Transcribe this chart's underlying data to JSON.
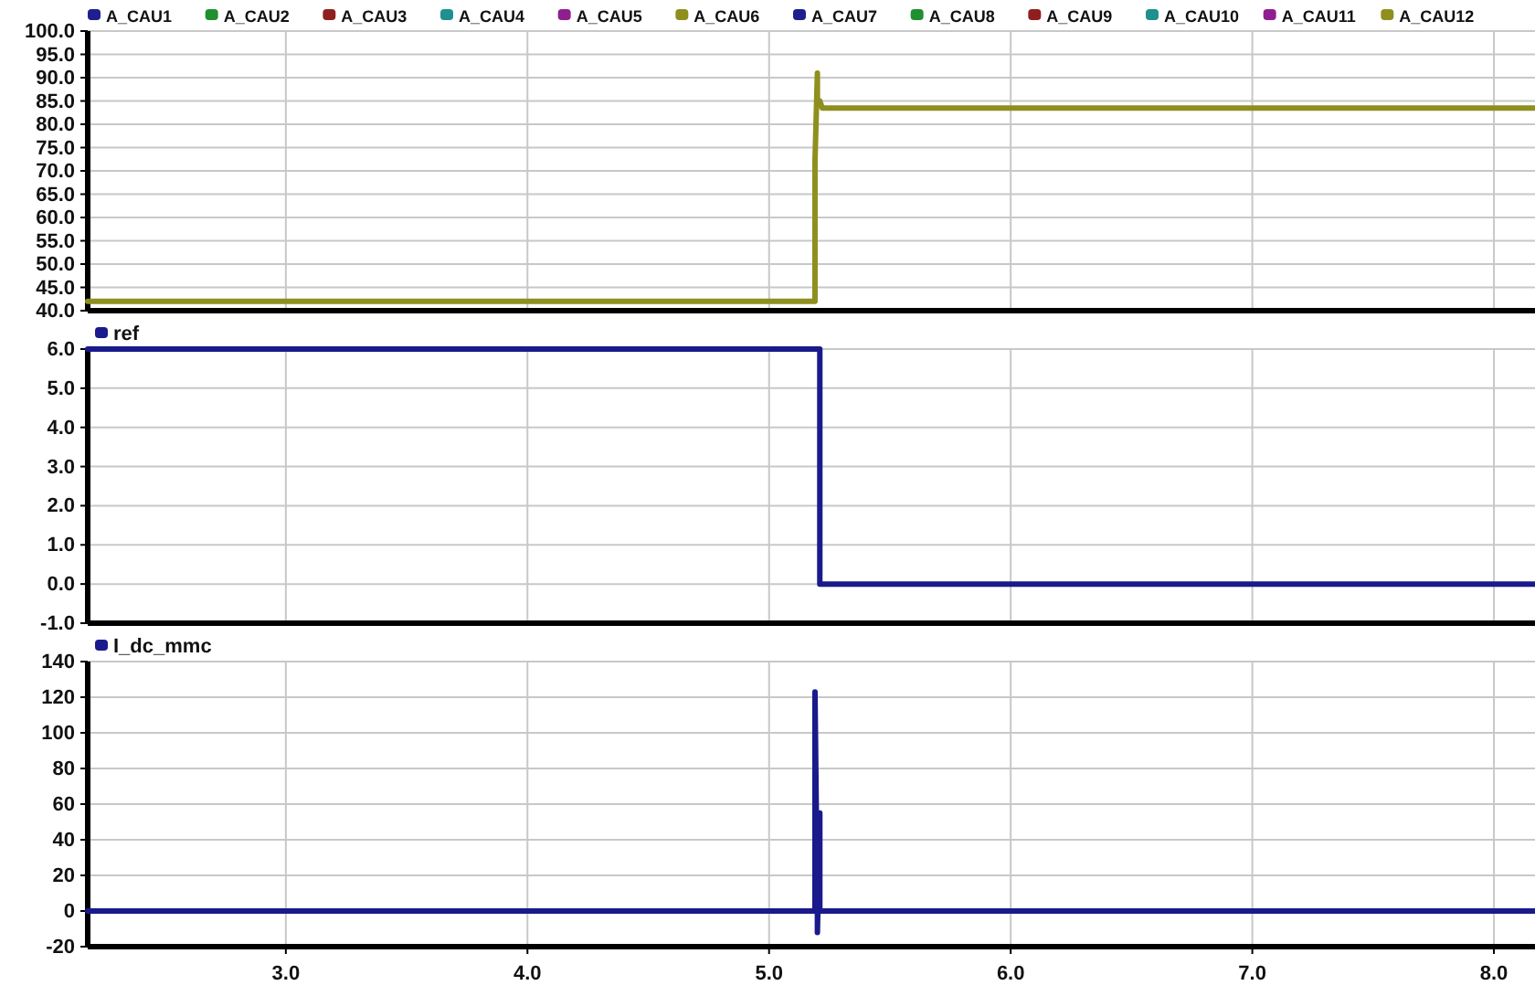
{
  "chart_data": [
    {
      "type": "line",
      "xlim": [
        2.18,
        8.17
      ],
      "xticks": [
        3,
        4,
        5,
        6,
        7,
        8
      ],
      "ylim": [
        40,
        100
      ],
      "yticks": [
        {
          "value": 40,
          "label": "40.0"
        },
        {
          "value": 45,
          "label": "45.0"
        },
        {
          "value": 50,
          "label": "50.0"
        },
        {
          "value": 55,
          "label": "55.0"
        },
        {
          "value": 60,
          "label": "60.0"
        },
        {
          "value": 65,
          "label": "65.0"
        },
        {
          "value": 70,
          "label": "70.0"
        },
        {
          "value": 75,
          "label": "75.0"
        },
        {
          "value": 80,
          "label": "80.0"
        },
        {
          "value": 85,
          "label": "85.0"
        },
        {
          "value": 90,
          "label": "90.0"
        },
        {
          "value": 95,
          "label": "95.0"
        },
        {
          "value": 100,
          "label": "100.0"
        }
      ],
      "tick_labels": "y",
      "grid": true,
      "legend": "top",
      "line_style": "solid",
      "marker": "none",
      "x": [
        2.18,
        5.19,
        5.19,
        5.2,
        5.2,
        5.21,
        5.22,
        8.17
      ],
      "series": [
        {
          "name": "A_CAU1",
          "color": "#1f1f8f",
          "values": [
            null,
            null,
            null,
            null,
            null,
            null,
            null,
            null
          ]
        },
        {
          "name": "A_CAU2",
          "color": "#1f8f2f",
          "values": [
            null,
            null,
            null,
            null,
            null,
            null,
            null,
            null
          ]
        },
        {
          "name": "A_CAU3",
          "color": "#8f1f1f",
          "values": [
            null,
            null,
            null,
            null,
            null,
            null,
            null,
            null
          ]
        },
        {
          "name": "A_CAU4",
          "color": "#1f8f8f",
          "values": [
            null,
            null,
            null,
            null,
            null,
            null,
            null,
            null
          ]
        },
        {
          "name": "A_CAU5",
          "color": "#8f1f8f",
          "values": [
            null,
            null,
            null,
            null,
            null,
            null,
            null,
            null
          ]
        },
        {
          "name": "A_CAU6",
          "color": "#8f8f1f",
          "values": [
            null,
            null,
            null,
            null,
            null,
            null,
            null,
            null
          ]
        },
        {
          "name": "A_CAU7",
          "color": "#1f1f8f",
          "values": [
            null,
            null,
            null,
            null,
            null,
            null,
            null,
            null
          ]
        },
        {
          "name": "A_CAU8",
          "color": "#1f8f2f",
          "values": [
            null,
            null,
            null,
            null,
            null,
            null,
            null,
            null
          ]
        },
        {
          "name": "A_CAU9",
          "color": "#8f1f1f",
          "values": [
            null,
            null,
            null,
            null,
            null,
            null,
            null,
            null
          ]
        },
        {
          "name": "A_CAU10",
          "color": "#1f8f8f",
          "values": [
            null,
            null,
            null,
            null,
            null,
            null,
            null,
            null
          ]
        },
        {
          "name": "A_CAU11",
          "color": "#8f1f8f",
          "values": [
            null,
            null,
            null,
            null,
            null,
            null,
            null,
            null
          ]
        },
        {
          "name": "A_CAU12",
          "color": "#8f8f1f",
          "values": [
            42,
            42,
            72,
            91,
            84,
            85,
            83.5,
            83.5
          ]
        }
      ]
    },
    {
      "type": "line",
      "xlim": [
        2.18,
        8.17
      ],
      "xticks": [
        3,
        4,
        5,
        6,
        7,
        8
      ],
      "ylim": [
        -1,
        6
      ],
      "yticks": [
        {
          "value": -1,
          "label": "-1.0"
        },
        {
          "value": 0,
          "label": "0.0"
        },
        {
          "value": 1,
          "label": "1.0"
        },
        {
          "value": 2,
          "label": "2.0"
        },
        {
          "value": 3,
          "label": "3.0"
        },
        {
          "value": 4,
          "label": "4.0"
        },
        {
          "value": 5,
          "label": "5.0"
        },
        {
          "value": 6,
          "label": "6.0"
        }
      ],
      "tick_labels": "y",
      "grid": true,
      "legend": "top left",
      "line_style": "solid",
      "marker": "none",
      "x": [
        2.18,
        5.21,
        5.21,
        8.17
      ],
      "series": [
        {
          "name": "ref",
          "color": "#1a1a8c",
          "values": [
            6,
            6,
            0,
            0
          ]
        }
      ]
    },
    {
      "type": "line",
      "xlim": [
        2.18,
        8.17
      ],
      "xticks": [
        {
          "value": 3,
          "label": "3.0"
        },
        {
          "value": 4,
          "label": "4.0"
        },
        {
          "value": 5,
          "label": "5.0"
        },
        {
          "value": 6,
          "label": "6.0"
        },
        {
          "value": 7,
          "label": "7.0"
        },
        {
          "value": 8,
          "label": "8.0"
        }
      ],
      "ylim": [
        -20,
        140
      ],
      "yticks": [
        -20,
        0,
        20,
        40,
        60,
        80,
        100,
        120,
        140
      ],
      "grid": true,
      "legend": "top left",
      "line_style": "solid",
      "marker": "none",
      "x": [
        2.18,
        5.19,
        5.19,
        5.2,
        5.2,
        5.21,
        5.21,
        5.22,
        8.17
      ],
      "series": [
        {
          "name": "I_dc_mmc",
          "color": "#1a1a8c",
          "values": [
            0,
            0,
            123,
            0,
            -12,
            55,
            0,
            0,
            0
          ]
        }
      ]
    }
  ]
}
